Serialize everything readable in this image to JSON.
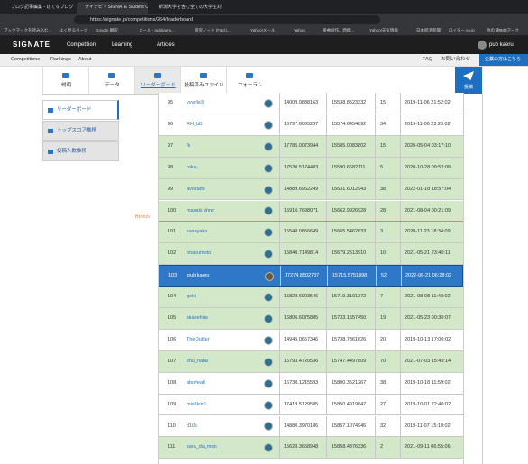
{
  "browser": {
    "tabs": [
      "ブログ記事編集 - はてなブログ",
      "サイナビ × SIGNATE Student C...",
      "新潟大学を含む全ての大学生対象..."
    ],
    "url": "https://signate.jp/competitions/264/leaderboard",
    "bookmarks": [
      "ブックマークを読み込む...",
      "よく見るページ",
      "Google 翻訳",
      "メール - pubkaeru...",
      "研究ノート (F&G)...",
      "Yahoo!メール",
      "Yahoo",
      "楽曲創作、時間...",
      "Yahoo!天気情報",
      "日本経済新聞",
      "ロイター.co.jp",
      "WPaS",
      "他のブックマーク"
    ]
  },
  "header": {
    "logo": "SIGNATE",
    "nav": [
      "Competition",
      "Learning",
      "Articles"
    ],
    "user": "pub kaeru"
  },
  "subnav": {
    "left": [
      "Competitions",
      "Rankings",
      "About"
    ],
    "right": [
      "FAQ",
      "お問い合わせ",
      "企業の方はこちら"
    ]
  },
  "tabs": [
    "説明",
    "データ",
    "リーダーボード",
    "投稿済みファイル",
    "フォーラム"
  ],
  "submit": "投稿",
  "sidebar": [
    "リーダーボード",
    "トップスコア推移",
    "投稿人数推移"
  ],
  "medal": "Bronze",
  "rows": [
    {
      "rank": "95",
      "name": "vvvrfle3",
      "public": "14009.0888163",
      "private": "15538.8523332",
      "count": "15",
      "date": "2019-11-06 21:52:02",
      "style": "plain"
    },
    {
      "rank": "96",
      "name": "RH_bB",
      "public": "16797.8005237",
      "private": "15574.6454892",
      "count": "34",
      "date": "2019-11-06 23:23:02",
      "style": "plain"
    },
    {
      "rank": "97",
      "name": "fk",
      "public": "17785.0073944",
      "private": "15585.0083802",
      "count": "15",
      "date": "2020-05-04 03:17:10",
      "style": "green"
    },
    {
      "rank": "98",
      "name": "roko。",
      "public": "17530.5174403",
      "private": "15590.6682111",
      "count": "5",
      "date": "2020-10-28 09:52:08",
      "style": "green"
    },
    {
      "rank": "99",
      "name": "avocado",
      "public": "14889.6962249",
      "private": "15631.6012943",
      "count": "38",
      "date": "2022-01-18 18:57:04",
      "style": "green"
    },
    {
      "rank": "100",
      "name": "masaki ohno",
      "public": "15910.7698071",
      "private": "15662.9926928",
      "count": "28",
      "date": "2021-08-04 00:21:09",
      "style": "green"
    },
    {
      "rank": "101",
      "name": "sasayaka",
      "public": "15548.0856649",
      "private": "15665.5462633",
      "count": "3",
      "date": "2020-11-23 18:34:09",
      "style": "green"
    },
    {
      "rank": "102",
      "name": "tmasumoto",
      "public": "15840.7149814",
      "private": "15679.2513910",
      "count": "10",
      "date": "2021-05-21 23:40:11",
      "style": "green"
    },
    {
      "rank": "103",
      "name": "pub kaeru",
      "public": "17274.8502737",
      "private": "15715.5751898",
      "count": "52",
      "date": "2022-06-21 06:28:02",
      "style": "self"
    },
    {
      "rank": "104",
      "name": "goki",
      "public": "15828.6903546",
      "private": "15719.3101372",
      "count": "7",
      "date": "2021-08-08 11:48:02",
      "style": "green"
    },
    {
      "rank": "105",
      "name": "skanehira",
      "public": "15806.6075885",
      "private": "15733.1557450",
      "count": "19",
      "date": "2021-05-23 00:30:07",
      "style": "green"
    },
    {
      "rank": "106",
      "name": "TheOutlier",
      "public": "14945.0657346",
      "private": "15738.7861626",
      "count": "20",
      "date": "2019-10-13 17:00:02",
      "style": "plain"
    },
    {
      "rank": "107",
      "name": "shu_naka",
      "public": "15793.4720536",
      "private": "15747.4497809",
      "count": "70",
      "date": "2021-07-03 15:49:14",
      "style": "green"
    },
    {
      "rank": "108",
      "name": "aboveall",
      "public": "16730.1215593",
      "private": "15800.3521267",
      "count": "38",
      "date": "2019-10-18 11:59:02",
      "style": "plain"
    },
    {
      "rank": "109",
      "name": "mishkin3",
      "public": "17419.5129505",
      "private": "15850.4919647",
      "count": "27",
      "date": "2019-10-01 22:40:02",
      "style": "plain"
    },
    {
      "rank": "110",
      "name": "d10s",
      "public": "14880.3970186",
      "private": "15857.1074946",
      "count": "32",
      "date": "2019-11-07 15:10:02",
      "style": "plain"
    },
    {
      "rank": "111",
      "name": "saru_da_mon",
      "public": "15628.3658948",
      "private": "15858.4876336",
      "count": "2",
      "date": "2021-09-11 06:55:06",
      "style": "green"
    }
  ]
}
